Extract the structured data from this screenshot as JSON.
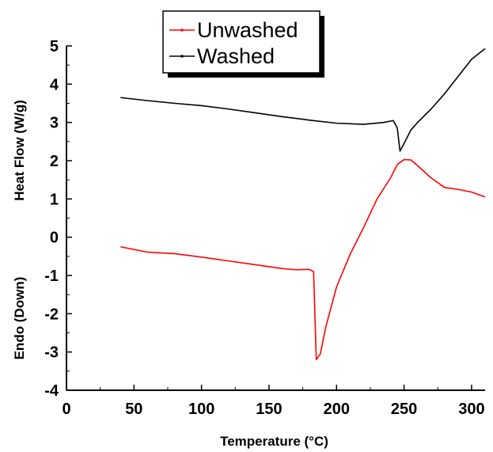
{
  "chart_data": {
    "type": "line",
    "title": "",
    "xlabel": "Temperature (°C)",
    "ylabel_upper": "Heat Flow (W/g)",
    "ylabel_lower": "Endo (Down)",
    "xlim": [
      0,
      310
    ],
    "ylim": [
      -4,
      5
    ],
    "x_ticks": [
      0,
      50,
      100,
      150,
      200,
      250,
      300
    ],
    "y_ticks": [
      -4,
      -3,
      -2,
      -1,
      0,
      1,
      2,
      3,
      4,
      5
    ],
    "legend": {
      "placement": "top-center",
      "entries": [
        "Unwashed",
        "Washed"
      ]
    },
    "series": [
      {
        "name": "Unwashed",
        "color": "#ff0000",
        "points": [
          [
            40,
            -0.25
          ],
          [
            50,
            -0.32
          ],
          [
            60,
            -0.39
          ],
          [
            70,
            -0.41
          ],
          [
            80,
            -0.43
          ],
          [
            100,
            -0.52
          ],
          [
            120,
            -0.62
          ],
          [
            140,
            -0.72
          ],
          [
            160,
            -0.82
          ],
          [
            170,
            -0.85
          ],
          [
            180,
            -0.84
          ],
          [
            183,
            -0.9
          ],
          [
            185,
            -3.2
          ],
          [
            188,
            -3.05
          ],
          [
            192,
            -2.35
          ],
          [
            200,
            -1.3
          ],
          [
            210,
            -0.45
          ],
          [
            220,
            0.25
          ],
          [
            230,
            1.0
          ],
          [
            240,
            1.55
          ],
          [
            245,
            1.9
          ],
          [
            250,
            2.03
          ],
          [
            255,
            2.02
          ],
          [
            260,
            1.87
          ],
          [
            270,
            1.55
          ],
          [
            280,
            1.3
          ],
          [
            290,
            1.25
          ],
          [
            300,
            1.18
          ],
          [
            310,
            1.05
          ]
        ]
      },
      {
        "name": "Washed",
        "color": "#000000",
        "points": [
          [
            40,
            3.65
          ],
          [
            60,
            3.57
          ],
          [
            80,
            3.5
          ],
          [
            100,
            3.44
          ],
          [
            120,
            3.35
          ],
          [
            140,
            3.25
          ],
          [
            160,
            3.15
          ],
          [
            180,
            3.06
          ],
          [
            200,
            2.98
          ],
          [
            220,
            2.95
          ],
          [
            235,
            3.0
          ],
          [
            242,
            3.05
          ],
          [
            245,
            2.85
          ],
          [
            247,
            2.25
          ],
          [
            250,
            2.45
          ],
          [
            255,
            2.8
          ],
          [
            260,
            3.0
          ],
          [
            270,
            3.35
          ],
          [
            280,
            3.75
          ],
          [
            290,
            4.2
          ],
          [
            300,
            4.65
          ],
          [
            310,
            4.93
          ]
        ]
      }
    ]
  }
}
